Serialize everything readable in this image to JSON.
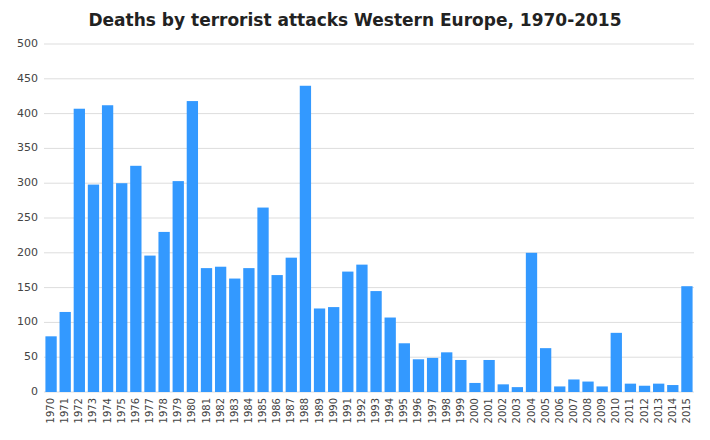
{
  "chart_data": {
    "type": "bar",
    "title": "Deaths by terrorist attacks Western Europe, 1970-2015",
    "categories": [
      "1970",
      "1971",
      "1972",
      "1973",
      "1974",
      "1975",
      "1976",
      "1977",
      "1978",
      "1979",
      "1980",
      "1981",
      "1982",
      "1983",
      "1984",
      "1985",
      "1986",
      "1987",
      "1988",
      "1989",
      "1990",
      "1991",
      "1992",
      "1993",
      "1994",
      "1995",
      "1996",
      "1997",
      "1998",
      "1999",
      "2000",
      "2001",
      "2002",
      "2003",
      "2004",
      "2005",
      "2006",
      "2007",
      "2008",
      "2009",
      "2010",
      "2011",
      "2012",
      "2013",
      "2014",
      "2015"
    ],
    "values": [
      80,
      115,
      407,
      298,
      412,
      300,
      325,
      196,
      230,
      303,
      418,
      178,
      180,
      163,
      178,
      265,
      168,
      193,
      440,
      120,
      122,
      173,
      183,
      145,
      107,
      70,
      47,
      49,
      57,
      46,
      13,
      46,
      11,
      7,
      200,
      63,
      8,
      18,
      15,
      8,
      85,
      12,
      9,
      12,
      10,
      152
    ],
    "color": "#3399FF",
    "ylim": [
      0,
      500
    ],
    "yticks": [
      0,
      50,
      100,
      150,
      200,
      250,
      300,
      350,
      400,
      450,
      500
    ],
    "grid": true
  }
}
